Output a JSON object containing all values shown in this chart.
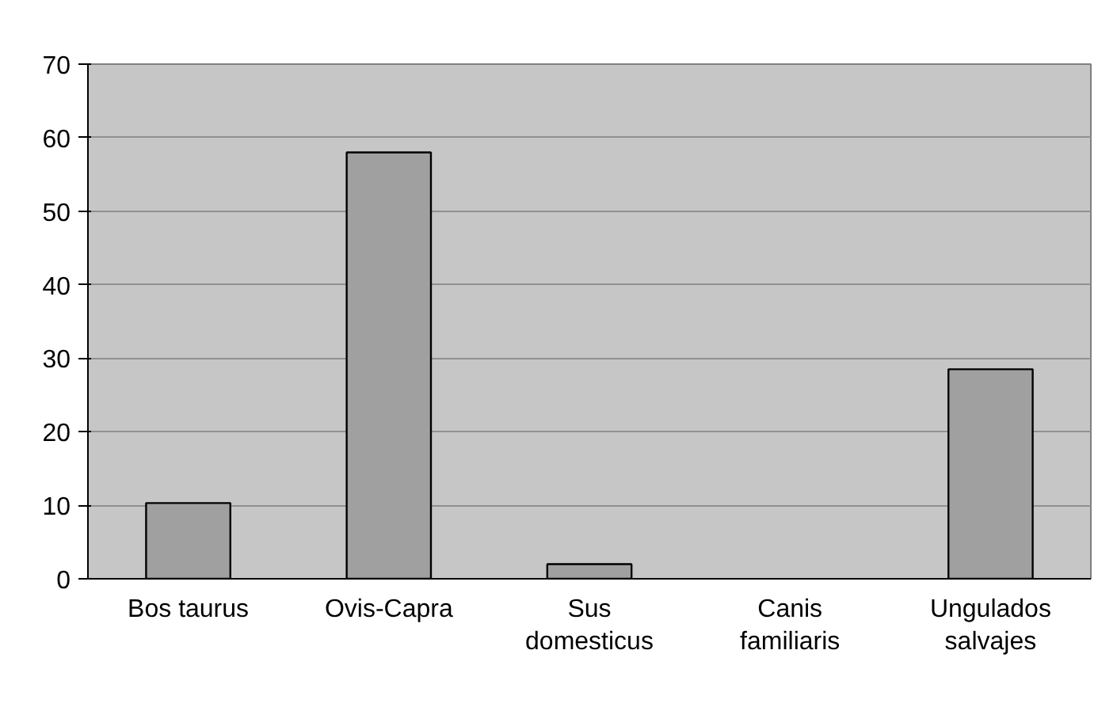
{
  "chart_data": {
    "type": "bar",
    "categories": [
      "Bos taurus",
      "Ovis-Capra",
      "Sus\ndomesticus",
      "Canis\nfamiliaris",
      "Ungulados\nsalvajes"
    ],
    "values": [
      10.3,
      58,
      2,
      null,
      28.5
    ],
    "color": "#a0a0a0",
    "ylim": [
      0,
      70
    ],
    "yticks": [
      0,
      10,
      20,
      30,
      40,
      50,
      60,
      70
    ],
    "grid": "y"
  }
}
